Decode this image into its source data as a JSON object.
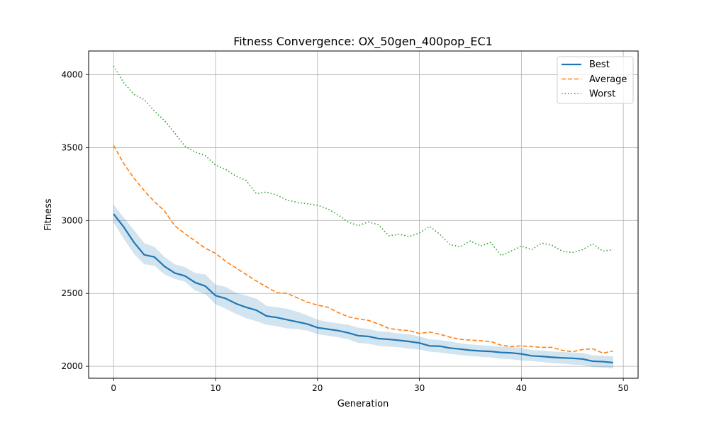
{
  "chart_data": {
    "type": "line",
    "title": "Fitness Convergence: OX_50gen_400pop_EC1",
    "xlabel": "Generation",
    "ylabel": "Fitness",
    "xlim": [
      -2.45,
      51.45
    ],
    "ylim": [
      1918,
      4163
    ],
    "xticks": [
      0,
      10,
      20,
      30,
      40,
      50
    ],
    "yticks": [
      2000,
      2500,
      3000,
      3500,
      4000
    ],
    "grid": true,
    "legend_position": "top-right",
    "x": [
      0,
      1,
      2,
      3,
      4,
      5,
      6,
      7,
      8,
      9,
      10,
      11,
      12,
      13,
      14,
      15,
      16,
      17,
      18,
      19,
      20,
      21,
      22,
      23,
      24,
      25,
      26,
      27,
      28,
      29,
      30,
      31,
      32,
      33,
      34,
      35,
      36,
      37,
      38,
      39,
      40,
      41,
      42,
      43,
      44,
      45,
      46,
      47,
      48,
      49
    ],
    "series": [
      {
        "name": "Best",
        "color": "#1f77b4",
        "style": "solid",
        "values": [
          3045,
          2955,
          2850,
          2765,
          2750,
          2685,
          2640,
          2620,
          2575,
          2550,
          2485,
          2465,
          2430,
          2405,
          2385,
          2345,
          2335,
          2320,
          2305,
          2290,
          2265,
          2255,
          2245,
          2230,
          2210,
          2205,
          2190,
          2185,
          2178,
          2170,
          2160,
          2140,
          2138,
          2125,
          2118,
          2110,
          2105,
          2102,
          2095,
          2092,
          2085,
          2072,
          2068,
          2062,
          2058,
          2055,
          2050,
          2035,
          2032,
          2025
        ],
        "band_lower": [
          2985,
          2875,
          2770,
          2700,
          2690,
          2630,
          2600,
          2580,
          2520,
          2495,
          2425,
          2395,
          2360,
          2330,
          2310,
          2285,
          2275,
          2260,
          2255,
          2245,
          2220,
          2210,
          2200,
          2185,
          2160,
          2155,
          2140,
          2135,
          2130,
          2120,
          2115,
          2100,
          2095,
          2085,
          2078,
          2070,
          2065,
          2060,
          2052,
          2048,
          2040,
          2035,
          2030,
          2022,
          2018,
          2012,
          2008,
          1995,
          1990,
          1985
        ],
        "band_upper": [
          3110,
          3020,
          2935,
          2845,
          2820,
          2750,
          2700,
          2680,
          2640,
          2630,
          2560,
          2545,
          2505,
          2485,
          2465,
          2415,
          2405,
          2395,
          2375,
          2350,
          2320,
          2305,
          2295,
          2285,
          2265,
          2255,
          2240,
          2235,
          2225,
          2220,
          2205,
          2185,
          2180,
          2170,
          2158,
          2150,
          2145,
          2140,
          2135,
          2132,
          2125,
          2112,
          2108,
          2102,
          2098,
          2095,
          2092,
          2075,
          2072,
          2068
        ]
      },
      {
        "name": "Average",
        "color": "#ff7f0e",
        "style": "dashed",
        "values": [
          3515,
          3390,
          3290,
          3205,
          3130,
          3065,
          2965,
          2910,
          2860,
          2810,
          2775,
          2720,
          2675,
          2630,
          2585,
          2545,
          2505,
          2500,
          2470,
          2440,
          2420,
          2405,
          2370,
          2340,
          2325,
          2315,
          2290,
          2260,
          2250,
          2245,
          2225,
          2235,
          2220,
          2200,
          2185,
          2180,
          2175,
          2170,
          2145,
          2135,
          2140,
          2135,
          2130,
          2130,
          2110,
          2100,
          2115,
          2120,
          2090,
          2105
        ]
      },
      {
        "name": "Worst",
        "color": "#2ca02c",
        "style": "dotted",
        "values": [
          4060,
          3945,
          3865,
          3830,
          3750,
          3685,
          3600,
          3510,
          3470,
          3445,
          3380,
          3350,
          3305,
          3275,
          3185,
          3195,
          3175,
          3140,
          3125,
          3115,
          3105,
          3080,
          3040,
          2990,
          2965,
          2990,
          2970,
          2895,
          2905,
          2890,
          2915,
          2960,
          2905,
          2835,
          2820,
          2860,
          2825,
          2850,
          2760,
          2790,
          2825,
          2800,
          2845,
          2830,
          2790,
          2780,
          2800,
          2840,
          2790,
          2800
        ]
      }
    ]
  }
}
